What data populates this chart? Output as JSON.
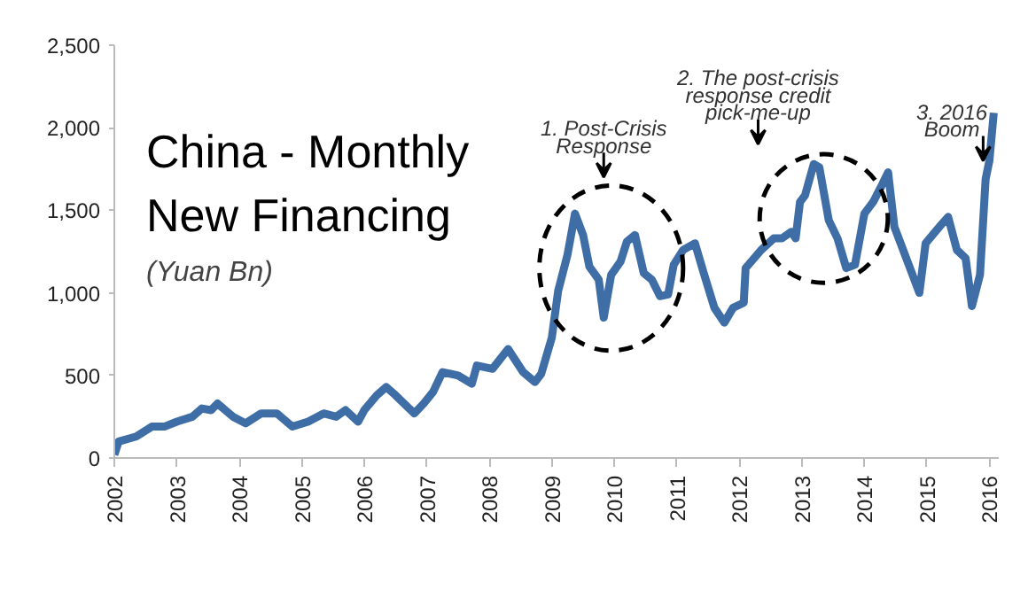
{
  "chart_data": {
    "type": "line",
    "title": "China - Monthly New Financing",
    "subtitle": "(Yuan Bn)",
    "x": [
      2002.0,
      2002.07,
      2002.35,
      2002.6,
      2002.8,
      2003.0,
      2003.25,
      2003.4,
      2003.55,
      2003.65,
      2003.9,
      2004.1,
      2004.35,
      2004.6,
      2004.85,
      2005.1,
      2005.35,
      2005.55,
      2005.7,
      2005.9,
      2006.0,
      2006.2,
      2006.35,
      2006.5,
      2006.8,
      2006.95,
      2007.1,
      2007.25,
      2007.5,
      2007.72,
      2007.8,
      2008.05,
      2008.3,
      2008.54,
      2008.73,
      2008.83,
      2009.0,
      2009.1,
      2009.25,
      2009.37,
      2009.5,
      2009.6,
      2009.75,
      2009.83,
      2009.95,
      2010.1,
      2010.2,
      2010.33,
      2010.47,
      2010.6,
      2010.73,
      2010.86,
      2010.95,
      2011.1,
      2011.29,
      2011.43,
      2011.6,
      2011.76,
      2011.9,
      2012.07,
      2012.1,
      2012.35,
      2012.55,
      2012.68,
      2012.83,
      2012.9,
      2012.97,
      2013.05,
      2013.19,
      2013.28,
      2013.43,
      2013.57,
      2013.71,
      2013.85,
      2014.0,
      2014.14,
      2014.29,
      2014.38,
      2014.48,
      2014.62,
      2014.76,
      2014.88,
      2014.98,
      2015.2,
      2015.34,
      2015.48,
      2015.62,
      2015.72,
      2015.85,
      2015.94,
      2016.0,
      2016.07
    ],
    "series": [
      {
        "color": "#3f6ea7",
        "values": [
          20,
          100,
          130,
          190,
          190,
          220,
          250,
          300,
          290,
          330,
          250,
          210,
          270,
          270,
          190,
          220,
          270,
          250,
          290,
          220,
          290,
          380,
          430,
          380,
          270,
          330,
          400,
          520,
          500,
          450,
          560,
          540,
          660,
          520,
          460,
          510,
          730,
          1010,
          1230,
          1480,
          1350,
          1160,
          1080,
          850,
          1110,
          1190,
          1310,
          1350,
          1120,
          1080,
          980,
          990,
          1170,
          1260,
          1300,
          1120,
          910,
          820,
          910,
          940,
          1150,
          1260,
          1330,
          1330,
          1370,
          1330,
          1550,
          1590,
          1780,
          1760,
          1440,
          1330,
          1150,
          1170,
          1480,
          1550,
          1660,
          1730,
          1400,
          1260,
          1120,
          1000,
          1300,
          1400,
          1460,
          1260,
          1210,
          920,
          1110,
          1690,
          1800,
          2090
        ]
      }
    ],
    "xlim": [
      2002,
      2016.15
    ],
    "ylim": [
      0,
      2500
    ],
    "xticks": [
      {
        "value": 2002,
        "label": "2002"
      },
      {
        "value": 2003,
        "label": "2003"
      },
      {
        "value": 2004,
        "label": "2004"
      },
      {
        "value": 2005,
        "label": "2005"
      },
      {
        "value": 2006,
        "label": "2006"
      },
      {
        "value": 2007,
        "label": "2007"
      },
      {
        "value": 2008,
        "label": "2008"
      },
      {
        "value": 2009,
        "label": "2009"
      },
      {
        "value": 2010,
        "label": "2010"
      },
      {
        "value": 2011,
        "label": "2011"
      },
      {
        "value": 2012,
        "label": "2012"
      },
      {
        "value": 2013,
        "label": "2013"
      },
      {
        "value": 2014,
        "label": "2014"
      },
      {
        "value": 2015,
        "label": "2015"
      },
      {
        "value": 2016,
        "label": "2016"
      }
    ],
    "yticks": [
      0,
      {
        "value": 500,
        "label": "500"
      },
      {
        "value": 1000,
        "label": "1,000"
      },
      {
        "value": 1500,
        "label": "1,500"
      },
      {
        "value": 2000,
        "label": "2,000"
      },
      {
        "value": 2500,
        "label": "2,500"
      }
    ],
    "grid": false,
    "line_style": "solid",
    "marker": "none",
    "annotations": [
      "1. Post-Crisis Response",
      "2. The post-crisis response credit pick-me-up",
      "3. 2016 Boom"
    ]
  }
}
